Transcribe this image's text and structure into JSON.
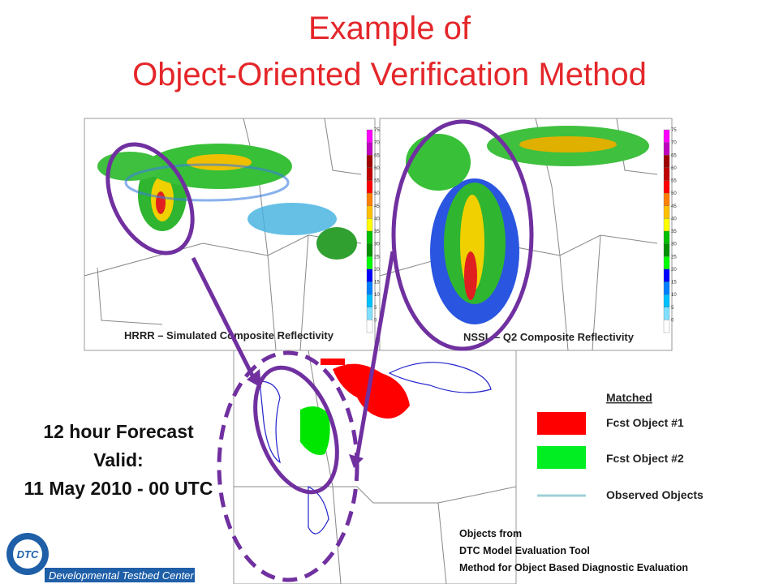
{
  "title": [
    "Example of",
    "Object-Oriented Verification Method"
  ],
  "panels": [
    {
      "caption": "HRRR – Simulated Composite Reflectivity"
    },
    {
      "caption": "NSSL – Q2 Composite Reflectivity"
    }
  ],
  "colorbar": {
    "labels": [
      "75",
      "70",
      "65",
      "60",
      "55",
      "50",
      "45",
      "40",
      "35",
      "30",
      "25",
      "20",
      "15",
      "10",
      "5",
      "0"
    ]
  },
  "forecast": [
    "12 hour Forecast",
    "Valid:",
    "11 May 2010 - 00 UTC"
  ],
  "legend": {
    "title": "Matched",
    "items": [
      "Fcst Object #1",
      "Fcst Object #2",
      "Observed Objects"
    ]
  },
  "source": [
    "Objects from",
    "DTC Model Evaluation Tool",
    "Method for Object Based Diagnostic Evaluation"
  ],
  "logo": {
    "abbr": "DTC",
    "name": "Developmental Testbed Center"
  }
}
